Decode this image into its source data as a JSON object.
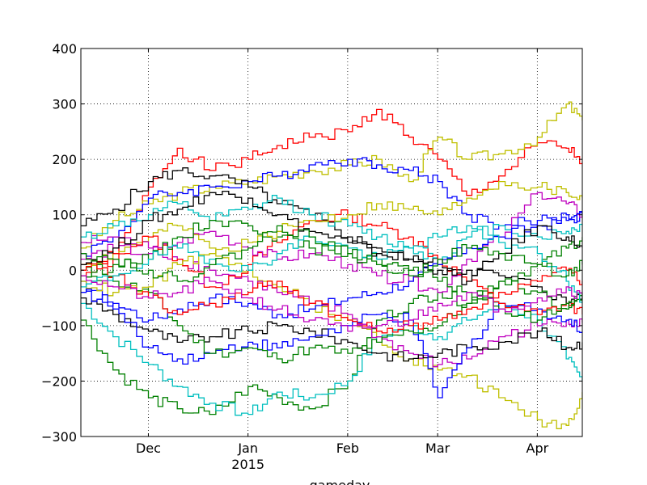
{
  "chart_data": {
    "type": "line",
    "title": "",
    "xlabel": "gameday",
    "ylabel": "",
    "xlim": [
      "2014-11-10",
      "2015-04-15"
    ],
    "ylim": [
      -300,
      400
    ],
    "grid": true,
    "legend": "none",
    "x_ticks": [
      {
        "date": "2014-12-01",
        "label": "Dec",
        "sublabel": ""
      },
      {
        "date": "2015-01-01",
        "label": "Jan",
        "sublabel": "2015"
      },
      {
        "date": "2015-02-01",
        "label": "Feb",
        "sublabel": ""
      },
      {
        "date": "2015-03-01",
        "label": "Mar",
        "sublabel": ""
      },
      {
        "date": "2015-04-01",
        "label": "Apr",
        "sublabel": ""
      }
    ],
    "y_ticks": [
      {
        "value": 400,
        "label": "400"
      },
      {
        "value": 300,
        "label": "300"
      },
      {
        "value": 200,
        "label": "200"
      },
      {
        "value": 100,
        "label": "100"
      },
      {
        "value": 0,
        "label": "0"
      },
      {
        "value": -100,
        "label": "−100"
      },
      {
        "value": -200,
        "label": "−200"
      },
      {
        "value": -300,
        "label": "−300"
      }
    ],
    "x": [
      "2014-11-10",
      "2014-11-20",
      "2014-12-01",
      "2014-12-10",
      "2014-12-20",
      "2015-01-01",
      "2015-01-10",
      "2015-01-20",
      "2015-02-01",
      "2015-02-10",
      "2015-02-20",
      "2015-03-01",
      "2015-03-10",
      "2015-03-20",
      "2015-04-01",
      "2015-04-10",
      "2015-04-15"
    ],
    "series": [
      {
        "color": "#ff0000",
        "values": [
          -10,
          20,
          150,
          220,
          180,
          200,
          225,
          240,
          250,
          290,
          240,
          200,
          135,
          170,
          230,
          220,
          195
        ]
      },
      {
        "color": "#bfbf00",
        "values": [
          10,
          30,
          60,
          80,
          40,
          0,
          -30,
          -60,
          -90,
          -120,
          -160,
          -180,
          -190,
          -230,
          -270,
          -280,
          -220
        ]
      },
      {
        "color": "#bfbf00",
        "values": [
          40,
          90,
          120,
          140,
          150,
          160,
          170,
          180,
          190,
          200,
          160,
          240,
          200,
          210,
          240,
          300,
          270
        ]
      },
      {
        "color": "#0000ff",
        "values": [
          30,
          60,
          130,
          140,
          150,
          160,
          170,
          190,
          200,
          190,
          180,
          160,
          100,
          80,
          90,
          100,
          95
        ]
      },
      {
        "color": "#000000",
        "values": [
          80,
          110,
          160,
          180,
          170,
          150,
          120,
          100,
          60,
          40,
          20,
          10,
          0,
          -10,
          -30,
          -60,
          -40
        ]
      },
      {
        "color": "#008000",
        "values": [
          -90,
          -180,
          -230,
          -250,
          -260,
          -210,
          -230,
          -250,
          -200,
          -90,
          -60,
          -40,
          -60,
          -20,
          10,
          40,
          60
        ]
      },
      {
        "color": "#00bfbf",
        "values": [
          -60,
          -120,
          -170,
          -210,
          -240,
          -260,
          -220,
          -230,
          -200,
          -120,
          -100,
          -120,
          -90,
          -60,
          -90,
          -160,
          -200
        ]
      },
      {
        "color": "#bf00bf",
        "values": [
          50,
          60,
          40,
          20,
          0,
          -20,
          -40,
          -60,
          -80,
          -120,
          -150,
          -170,
          -160,
          -120,
          -100,
          -90,
          -95
        ]
      },
      {
        "color": "#000000",
        "values": [
          -50,
          -80,
          -110,
          -130,
          -120,
          -110,
          -100,
          -110,
          -130,
          -150,
          -160,
          -150,
          -140,
          -130,
          -110,
          -140,
          -130
        ]
      },
      {
        "color": "#0000ff",
        "values": [
          -20,
          -70,
          -140,
          -160,
          -150,
          -130,
          -140,
          -120,
          -100,
          -80,
          -90,
          -230,
          -140,
          -60,
          -70,
          -90,
          -110
        ]
      },
      {
        "color": "#008000",
        "values": [
          0,
          -20,
          -40,
          -100,
          -150,
          -140,
          -160,
          -140,
          -150,
          -130,
          -110,
          -100,
          -60,
          -20,
          -40,
          -70,
          -50
        ]
      },
      {
        "color": "#00bfbf",
        "values": [
          60,
          80,
          100,
          120,
          90,
          110,
          130,
          100,
          80,
          60,
          40,
          20,
          60,
          80,
          60,
          70,
          80
        ]
      },
      {
        "color": "#ff0000",
        "values": [
          0,
          30,
          60,
          20,
          -30,
          10,
          50,
          90,
          100,
          80,
          60,
          20,
          -20,
          -60,
          -80,
          -60,
          -80
        ]
      },
      {
        "color": "#bf00bf",
        "values": [
          20,
          40,
          30,
          50,
          70,
          40,
          20,
          30,
          10,
          -10,
          -20,
          -40,
          20,
          60,
          140,
          120,
          100
        ]
      },
      {
        "color": "#008000",
        "values": [
          -10,
          10,
          20,
          60,
          90,
          80,
          60,
          40,
          30,
          20,
          0,
          -20,
          -40,
          -70,
          -90,
          -60,
          -40
        ]
      },
      {
        "color": "#bfbf00",
        "values": [
          -20,
          -40,
          -30,
          10,
          30,
          50,
          70,
          90,
          100,
          120,
          110,
          100,
          130,
          160,
          150,
          140,
          130
        ]
      },
      {
        "color": "#0000ff",
        "values": [
          -40,
          -60,
          -90,
          -70,
          -50,
          -60,
          -80,
          -70,
          -50,
          -40,
          -20,
          10,
          40,
          60,
          80,
          90,
          100
        ]
      },
      {
        "color": "#ff0000",
        "values": [
          10,
          -10,
          -50,
          -80,
          -60,
          -40,
          -20,
          -60,
          -90,
          -110,
          -100,
          -90,
          -70,
          -40,
          -20,
          0,
          -20
        ]
      },
      {
        "color": "#00bfbf",
        "values": [
          -30,
          -10,
          20,
          40,
          20,
          0,
          30,
          60,
          40,
          20,
          40,
          60,
          80,
          50,
          30,
          -20,
          -60
        ]
      },
      {
        "color": "#000000",
        "values": [
          10,
          40,
          90,
          110,
          140,
          130,
          100,
          70,
          50,
          30,
          20,
          0,
          -20,
          30,
          80,
          60,
          40
        ]
      },
      {
        "color": "#bf00bf",
        "values": [
          -10,
          -30,
          -50,
          -40,
          -20,
          -50,
          -70,
          -90,
          -110,
          -100,
          -90,
          -60,
          -40,
          -70,
          -50,
          -30,
          -50
        ]
      },
      {
        "color": "#008000",
        "values": [
          30,
          20,
          0,
          -20,
          10,
          40,
          80,
          60,
          30,
          10,
          -10,
          20,
          40,
          30,
          10,
          -10,
          10
        ]
      }
    ]
  }
}
